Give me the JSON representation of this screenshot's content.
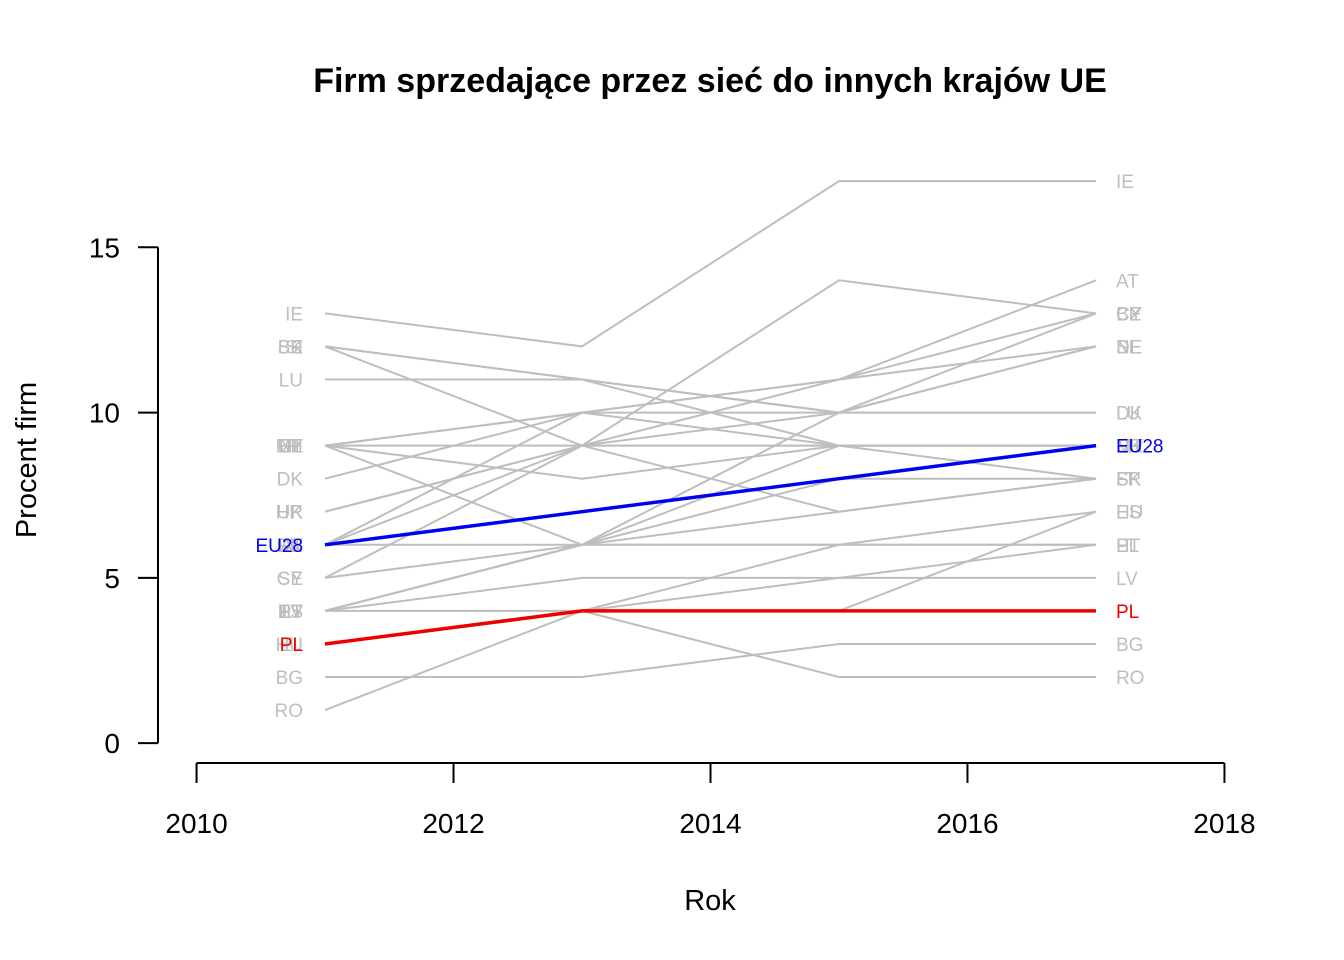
{
  "chart_data": {
    "type": "line",
    "title": "Firm sprzedające przez sieć do innych krajów UE",
    "xlabel": "Rok",
    "ylabel": "Procent firm",
    "x": [
      2011,
      2013,
      2015,
      2017
    ],
    "xlim": [
      2009.7,
      2018.3
    ],
    "ylim": [
      -0.6,
      17.7
    ],
    "xticks": [
      2010,
      2012,
      2014,
      2016,
      2018
    ],
    "yticks": [
      0,
      5,
      10,
      15
    ],
    "grid": false,
    "legend": "none",
    "colors": {
      "default": "#bebebe",
      "EU28": "#0000ee",
      "PL": "#ee0000"
    },
    "series": [
      {
        "name": "IE",
        "values": [
          13,
          12,
          17,
          17
        ]
      },
      {
        "name": "AT",
        "values": [
          6,
          10,
          11,
          14
        ]
      },
      {
        "name": "BE",
        "values": [
          12,
          11,
          10,
          13
        ]
      },
      {
        "name": "CZ",
        "values": [
          9,
          9,
          11,
          13
        ]
      },
      {
        "name": "DE",
        "values": [
          6,
          9,
          10,
          12
        ]
      },
      {
        "name": "SE",
        "values": [
          5,
          6,
          10,
          12
        ]
      },
      {
        "name": "LU",
        "values": [
          11,
          11,
          10,
          10
        ]
      },
      {
        "name": "DK",
        "values": [
          8,
          10,
          10,
          10
        ]
      },
      {
        "name": "CY",
        "values": [
          5,
          9,
          14,
          13
        ]
      },
      {
        "name": "SK",
        "values": [
          12,
          9,
          7,
          8
        ]
      },
      {
        "name": "ES",
        "values": [
          4,
          6,
          6,
          7
        ]
      },
      {
        "name": "FI",
        "values": [
          9,
          8,
          9,
          9
        ]
      },
      {
        "name": "HU",
        "values": [
          3,
          4,
          4,
          7
        ]
      },
      {
        "name": "LV",
        "values": [
          4,
          5,
          5,
          5
        ]
      },
      {
        "name": "BG",
        "values": [
          2,
          2,
          3,
          3
        ]
      },
      {
        "name": "RO",
        "values": [
          1,
          4,
          2,
          2
        ]
      },
      {
        "name": "UK",
        "values": [
          7,
          9,
          9,
          9
        ]
      },
      {
        "name": "FR",
        "values": [
          6,
          6,
          7,
          8
        ]
      },
      {
        "name": "NL",
        "values": [
          9,
          10,
          11,
          12
        ]
      },
      {
        "name": "EE",
        "values": [
          9,
          6,
          9,
          9
        ]
      },
      {
        "name": "LT",
        "values": [
          4,
          6,
          8,
          8
        ]
      },
      {
        "name": "HR",
        "values": [
          7,
          9,
          9,
          9
        ]
      },
      {
        "name": "IT",
        "values": [
          4,
          4,
          5,
          6
        ]
      },
      {
        "name": "PT",
        "values": [
          4,
          6,
          6,
          6
        ]
      },
      {
        "name": "SI",
        "values": [
          12,
          11,
          9,
          8
        ]
      },
      {
        "name": "EL",
        "values": [
          3,
          4,
          6,
          6
        ]
      },
      {
        "name": "MT",
        "values": [
          9,
          10,
          9,
          9
        ]
      },
      {
        "name": "EU28",
        "values": [
          6,
          7,
          8,
          9
        ],
        "highlight": true
      },
      {
        "name": "PL",
        "values": [
          3,
          4,
          4,
          4
        ],
        "highlight": true
      }
    ]
  }
}
